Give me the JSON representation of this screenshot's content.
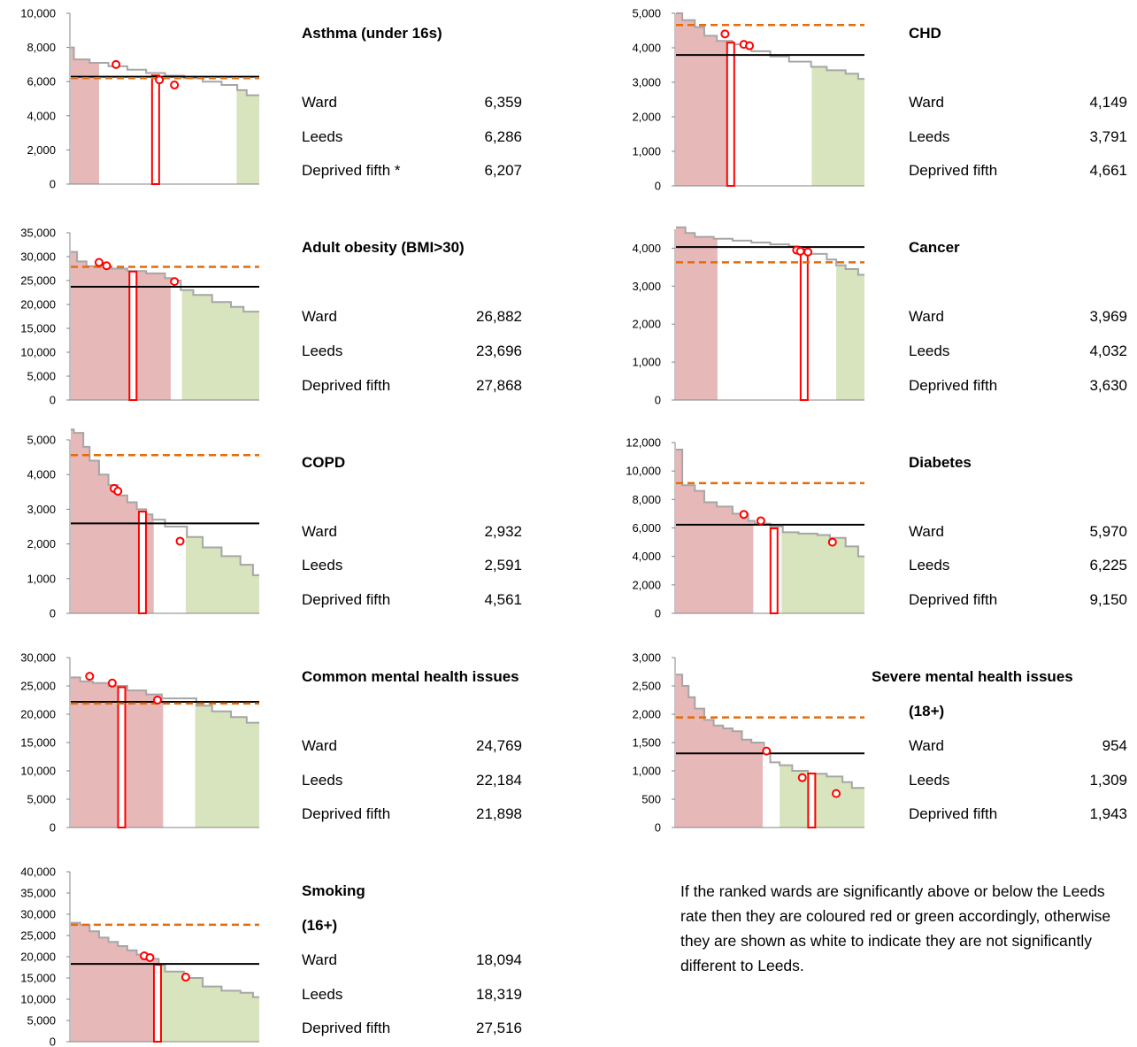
{
  "note": "If the ranked wards are significantly above or below the Leeds rate then they are coloured red or green accordingly, otherwise they are shown as white to indicate they are not significantly different to Leeds.",
  "labels": {
    "ward": "Ward",
    "leeds": "Leeds"
  },
  "colors": {
    "red_zone": "#e6b8b7",
    "green_zone": "#d7e4bd",
    "ward_bar": "#ff0000",
    "leeds_line": "#000000",
    "deprived_line": "#e46c0a",
    "step_line": "#a6a6a6",
    "markers": "#ff0000"
  },
  "chart_data": [
    {
      "type": "bar",
      "title": "Asthma (under 16s)",
      "subtitle": "",
      "ylim": [
        0,
        10000
      ],
      "yticks": [
        "0",
        "2,000",
        "4,000",
        "6,000",
        "8,000",
        "10,000"
      ],
      "ward": 6359,
      "leeds": 6286,
      "deprived": 6207,
      "ward_label": "6,359",
      "leeds_label": "6,286",
      "deprived_label": "6,207",
      "deprived_text": "Deprived fifth *",
      "red_end": 0.15,
      "white_end": 0.88,
      "ward_pos": 0.45,
      "profile": [
        [
          0,
          8000
        ],
        [
          0.02,
          7300
        ],
        [
          0.1,
          7100
        ],
        [
          0.2,
          6900
        ],
        [
          0.3,
          6700
        ],
        [
          0.4,
          6500
        ],
        [
          0.5,
          6350
        ],
        [
          0.6,
          6200
        ],
        [
          0.7,
          6000
        ],
        [
          0.8,
          5800
        ],
        [
          0.88,
          5500
        ],
        [
          0.94,
          5200
        ],
        [
          1.0,
          4900
        ]
      ],
      "markers": [
        [
          0.24,
          7000
        ],
        [
          0.47,
          6100
        ],
        [
          0.55,
          5800
        ]
      ]
    },
    {
      "type": "bar",
      "title": "Adult obesity (BMI>30)",
      "subtitle": "",
      "ylim": [
        0,
        35000
      ],
      "yticks": [
        "0",
        "5,000",
        "10,000",
        "15,000",
        "20,000",
        "25,000",
        "30,000",
        "35,000"
      ],
      "ward": 26882,
      "leeds": 23696,
      "deprived": 27868,
      "ward_label": "26,882",
      "leeds_label": "23,696",
      "deprived_label": "27,868",
      "deprived_text": "Deprived fifth",
      "red_end": 0.53,
      "white_end": 0.59,
      "ward_pos": 0.33,
      "profile": [
        [
          0,
          31000
        ],
        [
          0.03,
          29000
        ],
        [
          0.08,
          28000
        ],
        [
          0.2,
          27500
        ],
        [
          0.3,
          27000
        ],
        [
          0.4,
          26500
        ],
        [
          0.5,
          25500
        ],
        [
          0.53,
          25000
        ],
        [
          0.59,
          23000
        ],
        [
          0.65,
          22000
        ],
        [
          0.75,
          20500
        ],
        [
          0.85,
          19500
        ],
        [
          0.92,
          18500
        ],
        [
          1.0,
          17800
        ]
      ],
      "markers": [
        [
          0.15,
          28800
        ],
        [
          0.19,
          28100
        ],
        [
          0.55,
          24800
        ]
      ]
    },
    {
      "type": "bar",
      "title": "COPD",
      "subtitle": "",
      "ylim": [
        0,
        5000
      ],
      "yticks": [
        "0",
        "1,000",
        "2,000",
        "3,000",
        "4,000",
        "5,000"
      ],
      "ward": 2932,
      "leeds": 2591,
      "deprived": 4561,
      "ward_label": "2,932",
      "leeds_label": "2,591",
      "deprived_label": "4,561",
      "deprived_text": "Deprived fifth",
      "red_end": 0.44,
      "white_end": 0.61,
      "ward_pos": 0.38,
      "profile": [
        [
          0,
          5300
        ],
        [
          0.02,
          5200
        ],
        [
          0.06,
          4800
        ],
        [
          0.1,
          4400
        ],
        [
          0.15,
          4000
        ],
        [
          0.2,
          3700
        ],
        [
          0.25,
          3400
        ],
        [
          0.3,
          3200
        ],
        [
          0.35,
          3000
        ],
        [
          0.4,
          2850
        ],
        [
          0.44,
          2700
        ],
        [
          0.5,
          2500
        ],
        [
          0.61,
          2200
        ],
        [
          0.7,
          1900
        ],
        [
          0.8,
          1650
        ],
        [
          0.9,
          1400
        ],
        [
          0.96,
          1100
        ],
        [
          1.0,
          1050
        ]
      ],
      "markers": [
        [
          0.23,
          3600
        ],
        [
          0.25,
          3520
        ],
        [
          0.58,
          2080
        ]
      ]
    },
    {
      "type": "bar",
      "title": "Common mental health issues",
      "subtitle": "",
      "ylim": [
        0,
        30000
      ],
      "yticks": [
        "0",
        "5,000",
        "10,000",
        "15,000",
        "20,000",
        "25,000",
        "30,000"
      ],
      "ward": 24769,
      "leeds": 22184,
      "deprived": 21898,
      "ward_label": "24,769",
      "leeds_label": "22,184",
      "deprived_label": "21,898",
      "deprived_text": "Deprived fifth",
      "red_end": 0.49,
      "white_end": 0.66,
      "ward_pos": 0.27,
      "profile": [
        [
          0,
          26500
        ],
        [
          0.05,
          25800
        ],
        [
          0.12,
          25500
        ],
        [
          0.2,
          25000
        ],
        [
          0.3,
          24200
        ],
        [
          0.4,
          23500
        ],
        [
          0.49,
          22800
        ],
        [
          0.66,
          21500
        ],
        [
          0.75,
          20500
        ],
        [
          0.85,
          19500
        ],
        [
          0.93,
          18500
        ],
        [
          1.0,
          17200
        ]
      ],
      "markers": [
        [
          0.1,
          26700
        ],
        [
          0.22,
          25500
        ],
        [
          0.46,
          22500
        ]
      ]
    },
    {
      "type": "bar",
      "title": "Smoking",
      "subtitle": "(16+)",
      "ylim": [
        0,
        40000
      ],
      "yticks": [
        "0",
        "5,000",
        "10,000",
        "15,000",
        "20,000",
        "25,000",
        "30,000",
        "35,000",
        "40,000"
      ],
      "ward": 18094,
      "leeds": 18319,
      "deprived": 27516,
      "ward_label": "18,094",
      "leeds_label": "18,319",
      "deprived_label": "27,516",
      "deprived_text": "Deprived fifth",
      "red_end": 0.46,
      "white_end": 0.46,
      "ward_pos": 0.46,
      "profile": [
        [
          0,
          28000
        ],
        [
          0.05,
          27500
        ],
        [
          0.1,
          26000
        ],
        [
          0.15,
          24500
        ],
        [
          0.2,
          23500
        ],
        [
          0.25,
          22500
        ],
        [
          0.3,
          21500
        ],
        [
          0.35,
          20500
        ],
        [
          0.4,
          19500
        ],
        [
          0.46,
          18000
        ],
        [
          0.5,
          16500
        ],
        [
          0.6,
          15000
        ],
        [
          0.7,
          13000
        ],
        [
          0.8,
          12000
        ],
        [
          0.9,
          11500
        ],
        [
          0.96,
          10500
        ],
        [
          1.0,
          9800
        ]
      ],
      "markers": [
        [
          0.39,
          20200
        ],
        [
          0.42,
          19800
        ],
        [
          0.61,
          15200
        ]
      ]
    },
    {
      "type": "bar",
      "title": "CHD",
      "subtitle": "",
      "ylim": [
        0,
        5000
      ],
      "yticks": [
        "0",
        "1,000",
        "2,000",
        "3,000",
        "4,000",
        "5,000"
      ],
      "ward": 4149,
      "leeds": 3791,
      "deprived": 4661,
      "ward_label": "4,149",
      "leeds_label": "3,791",
      "deprived_label": "4,661",
      "deprived_text": "Deprived fifth",
      "red_end": 0.28,
      "white_end": 0.72,
      "ward_pos": 0.29,
      "profile": [
        [
          0,
          5000
        ],
        [
          0.04,
          4800
        ],
        [
          0.1,
          4600
        ],
        [
          0.15,
          4350
        ],
        [
          0.22,
          4200
        ],
        [
          0.3,
          4100
        ],
        [
          0.4,
          3900
        ],
        [
          0.5,
          3750
        ],
        [
          0.6,
          3600
        ],
        [
          0.72,
          3450
        ],
        [
          0.8,
          3350
        ],
        [
          0.9,
          3250
        ],
        [
          0.96,
          3100
        ],
        [
          1.0,
          3000
        ]
      ],
      "markers": [
        [
          0.26,
          4400
        ],
        [
          0.36,
          4100
        ],
        [
          0.39,
          4060
        ]
      ]
    },
    {
      "type": "bar",
      "title": "Cancer",
      "subtitle": "",
      "ylim": [
        0,
        4500
      ],
      "yticks": [
        "0",
        "1,000",
        "2,000",
        "3,000",
        "4,000"
      ],
      "ward": 3969,
      "leeds": 4032,
      "deprived": 3630,
      "ward_label": "3,969",
      "leeds_label": "4,032",
      "deprived_label": "3,630",
      "deprived_text": "Deprived fifth",
      "red_end": 0.22,
      "white_end": 0.85,
      "ward_pos": 0.68,
      "profile": [
        [
          0,
          4550
        ],
        [
          0.05,
          4400
        ],
        [
          0.1,
          4300
        ],
        [
          0.2,
          4250
        ],
        [
          0.3,
          4200
        ],
        [
          0.4,
          4150
        ],
        [
          0.5,
          4100
        ],
        [
          0.6,
          4050
        ],
        [
          0.65,
          3950
        ],
        [
          0.7,
          3850
        ],
        [
          0.8,
          3700
        ],
        [
          0.85,
          3550
        ],
        [
          0.9,
          3450
        ],
        [
          0.96,
          3300
        ],
        [
          1.0,
          3200
        ]
      ],
      "markers": [
        [
          0.64,
          3950
        ],
        [
          0.66,
          3920
        ],
        [
          0.7,
          3900
        ]
      ]
    },
    {
      "type": "bar",
      "title": "Diabetes",
      "subtitle": "",
      "ylim": [
        0,
        12000
      ],
      "yticks": [
        "0",
        "2,000",
        "4,000",
        "6,000",
        "8,000",
        "10,000",
        "12,000"
      ],
      "ward": 5970,
      "leeds": 6225,
      "deprived": 9150,
      "ward_label": "5,970",
      "leeds_label": "6,225",
      "deprived_label": "9,150",
      "deprived_text": "Deprived fifth",
      "red_end": 0.41,
      "white_end": 0.56,
      "ward_pos": 0.52,
      "profile": [
        [
          0,
          11500
        ],
        [
          0.03,
          9000
        ],
        [
          0.1,
          8600
        ],
        [
          0.15,
          7800
        ],
        [
          0.22,
          7500
        ],
        [
          0.3,
          7000
        ],
        [
          0.38,
          6500
        ],
        [
          0.41,
          6300
        ],
        [
          0.5,
          6100
        ],
        [
          0.56,
          5700
        ],
        [
          0.65,
          5600
        ],
        [
          0.75,
          5500
        ],
        [
          0.82,
          5300
        ],
        [
          0.9,
          4700
        ],
        [
          0.96,
          4000
        ],
        [
          1.0,
          3600
        ]
      ],
      "markers": [
        [
          0.36,
          6950
        ],
        [
          0.45,
          6500
        ],
        [
          0.83,
          5000
        ]
      ]
    },
    {
      "type": "bar",
      "title": "Severe mental health issues",
      "subtitle": "(18+)",
      "ylim": [
        0,
        3000
      ],
      "yticks": [
        "0",
        "500",
        "1,000",
        "1,500",
        "2,000",
        "2,500",
        "3,000"
      ],
      "ward": 954,
      "leeds": 1309,
      "deprived": 1943,
      "ward_label": "954",
      "leeds_label": "1,309",
      "deprived_label": "1,943",
      "deprived_text": "Deprived fifth",
      "red_end": 0.46,
      "white_end": 0.55,
      "ward_pos": 0.72,
      "profile": [
        [
          0,
          2700
        ],
        [
          0.03,
          2500
        ],
        [
          0.06,
          2300
        ],
        [
          0.1,
          2100
        ],
        [
          0.15,
          1900
        ],
        [
          0.2,
          1800
        ],
        [
          0.25,
          1750
        ],
        [
          0.3,
          1700
        ],
        [
          0.35,
          1550
        ],
        [
          0.4,
          1500
        ],
        [
          0.46,
          1350
        ],
        [
          0.5,
          1150
        ],
        [
          0.55,
          1100
        ],
        [
          0.62,
          1000
        ],
        [
          0.7,
          950
        ],
        [
          0.8,
          900
        ],
        [
          0.88,
          800
        ],
        [
          0.94,
          700
        ],
        [
          1.0,
          600
        ]
      ],
      "markers": [
        [
          0.48,
          1350
        ],
        [
          0.67,
          880
        ],
        [
          0.85,
          600
        ]
      ]
    }
  ]
}
